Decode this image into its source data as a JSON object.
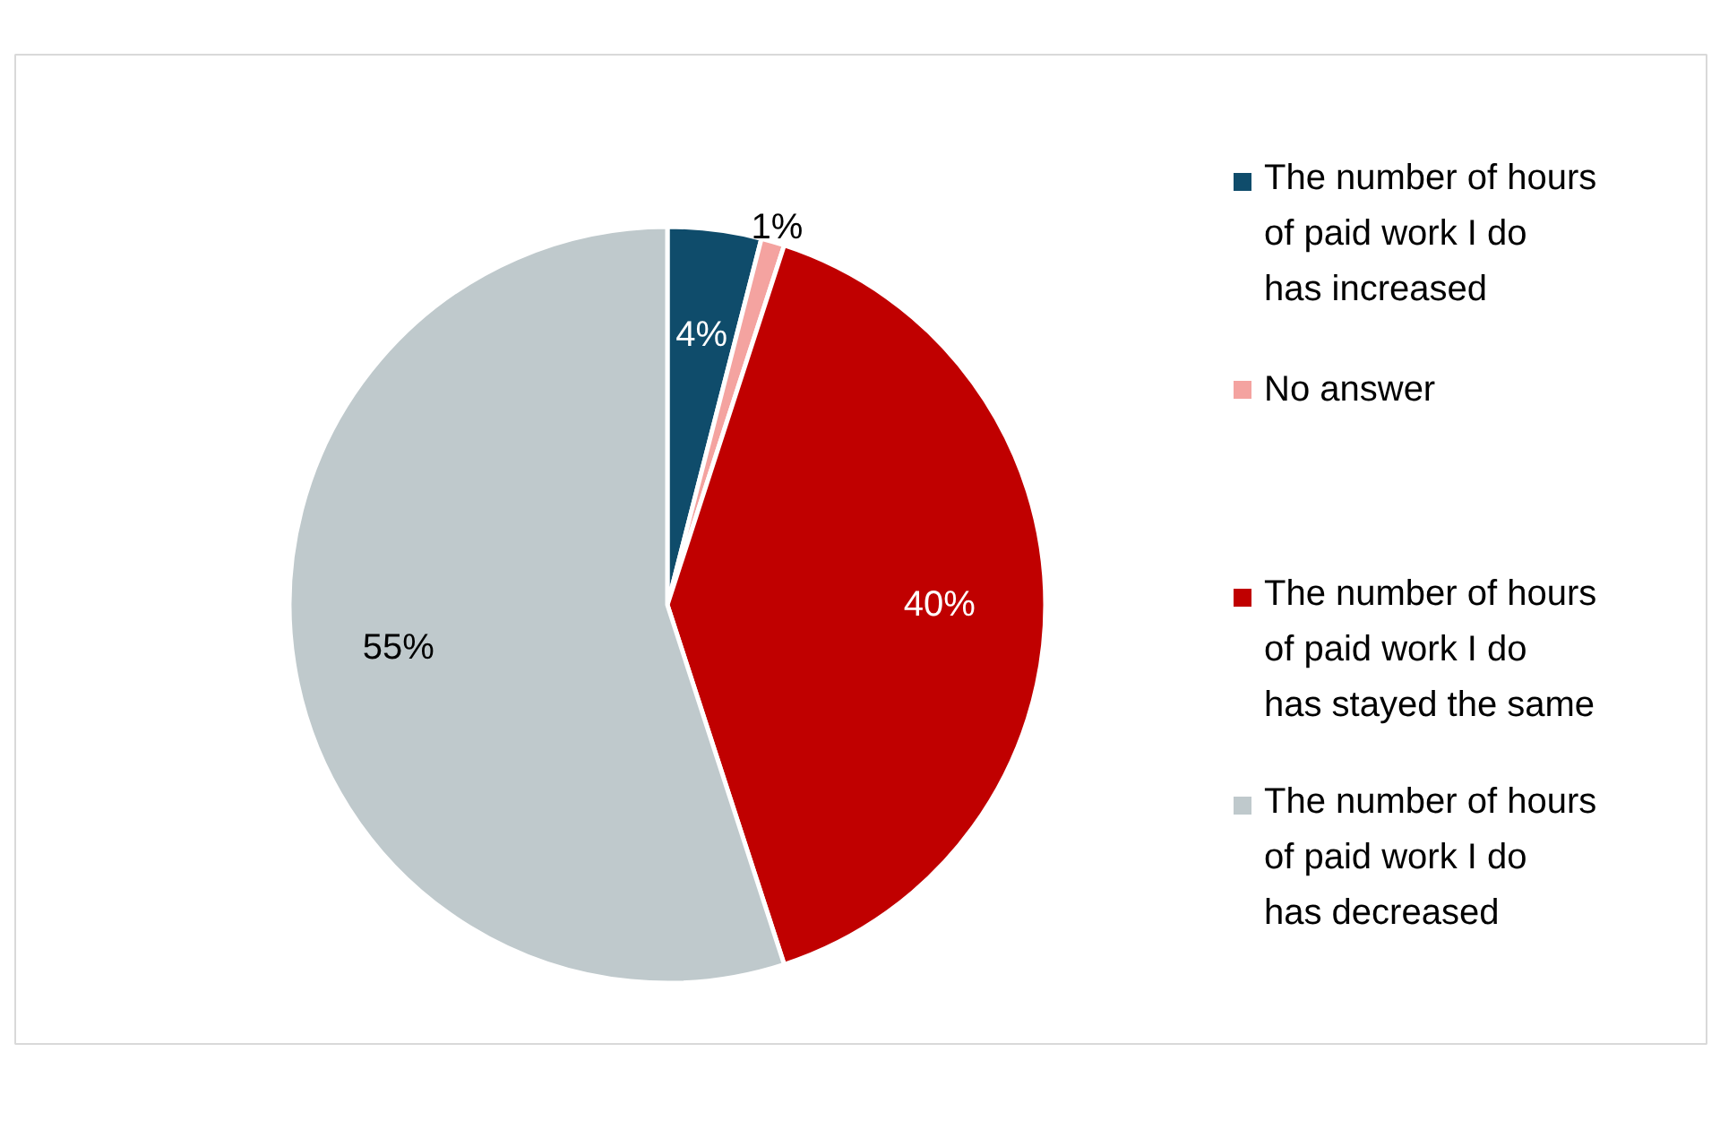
{
  "chart_data": {
    "type": "pie",
    "categories": [
      "The number of hours of paid work I do has increased",
      "No answer",
      "The number of hours of paid work I do has stayed the same",
      "The number of hours of paid work I do has decreased"
    ],
    "values": [
      4,
      1,
      40,
      55
    ],
    "colors": [
      "#0f4c6b",
      "#f4a3a0",
      "#c00000",
      "#bfc9cc"
    ],
    "value_labels": [
      "4%",
      "1%",
      "40%",
      "55%"
    ],
    "legend": "right"
  }
}
